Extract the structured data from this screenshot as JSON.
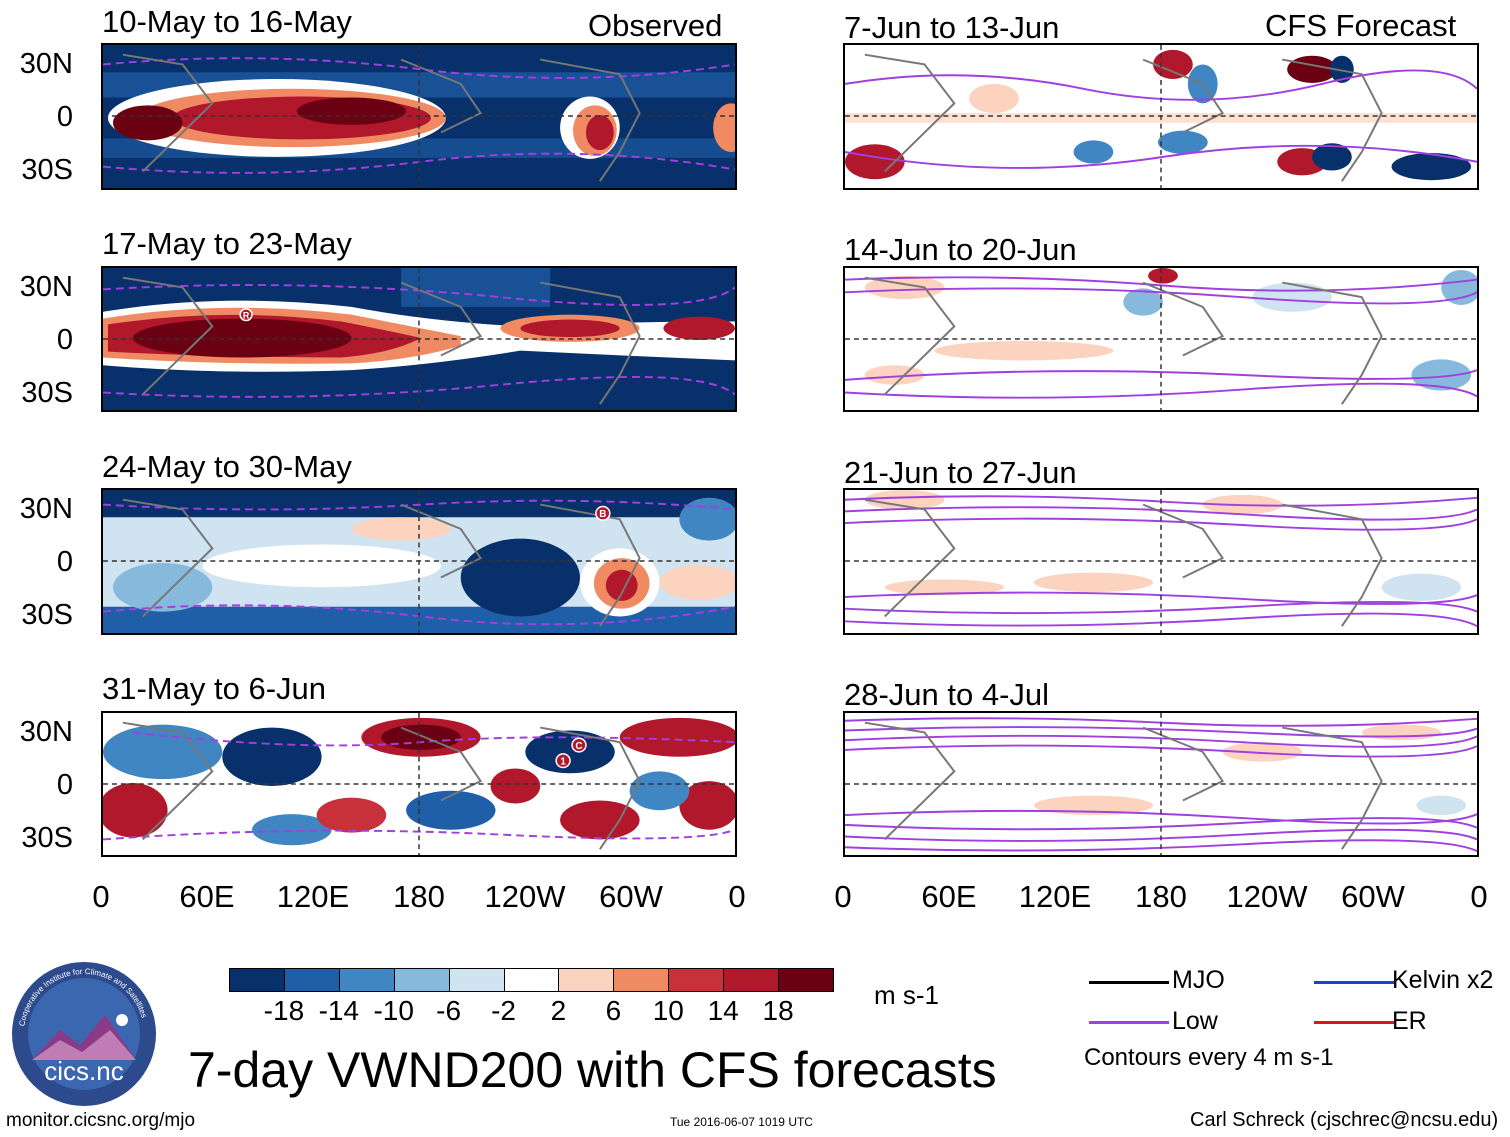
{
  "header": {
    "observed_label": "Observed",
    "forecast_label": "CFS Forecast"
  },
  "observed_panels": [
    {
      "title": "10-May to 16-May",
      "pattern": "strong-dipole"
    },
    {
      "title": "17-May to 23-May",
      "pattern": "strong-band",
      "marker": "R"
    },
    {
      "title": "24-May to 30-May",
      "pattern": "mixed",
      "marker": "B"
    },
    {
      "title": "31-May to 6-Jun",
      "pattern": "wavy",
      "markers": [
        "1",
        "C"
      ]
    }
  ],
  "forecast_panels": [
    {
      "title": "7-Jun to 13-Jun"
    },
    {
      "title": "14-Jun to 20-Jun"
    },
    {
      "title": "21-Jun to 27-Jun"
    },
    {
      "title": "28-Jun to 4-Jul"
    }
  ],
  "y_axis": [
    "30N",
    "0",
    "30S"
  ],
  "x_axis": [
    "0",
    "60E",
    "120E",
    "180",
    "120W",
    "60W",
    "0"
  ],
  "colorbar": {
    "labels": [
      "-18",
      "-14",
      "-10",
      "-6",
      "-2",
      "2",
      "6",
      "10",
      "14",
      "18"
    ],
    "units": "m s-1",
    "colors": [
      "#08306b",
      "#1f5fa8",
      "#3f86c2",
      "#87b9dc",
      "#cfe3f1",
      "#ffffff",
      "#fbd3be",
      "#ef8a62",
      "#c8303a",
      "#b2182b",
      "#6b0013"
    ]
  },
  "legend": {
    "items": [
      {
        "label": "MJO",
        "color": "#000000"
      },
      {
        "label": "Kelvin x2",
        "color": "#1f3fd0"
      },
      {
        "label": "Low",
        "color": "#a040e0"
      },
      {
        "label": "ER",
        "color": "#d81818"
      }
    ],
    "note": "Contours every 4 m s-1"
  },
  "footer": {
    "main_title": "7-day VWND200 with CFS forecasts",
    "logo_text": "cics.nc",
    "logo_ring_text": "Cooperative Institute for Climate and Satellites",
    "url": "monitor.cicsnc.org/mjo",
    "timestamp": "Tue 2016-06-07 1019 UTC",
    "credit": "Carl Schreck (cjschrec@ncsu.edu)"
  }
}
